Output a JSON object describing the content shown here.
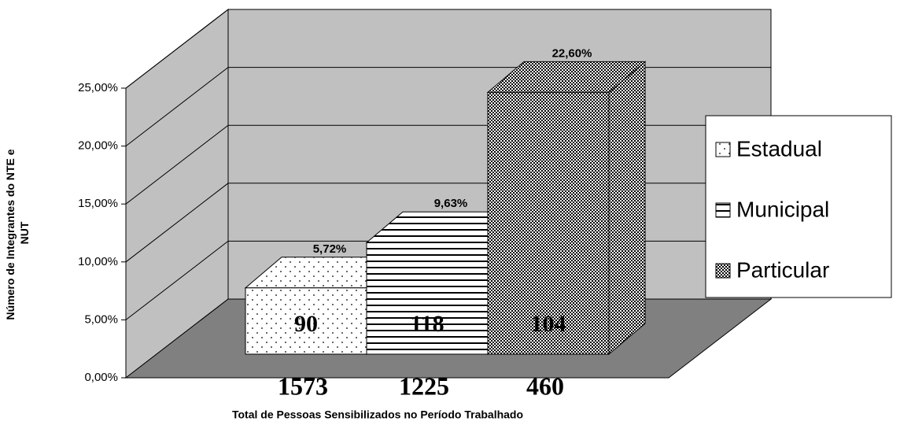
{
  "chart_data": {
    "type": "bar3d",
    "y_label": [
      "Número de Integrantes do NTE e",
      "NUT"
    ],
    "x_label": "Total de Pessoas Sensibilizados no Período Trabalhado",
    "categories": [
      "1573",
      "1225",
      "460"
    ],
    "values": [
      5.72,
      9.63,
      22.6
    ],
    "value_labels": [
      "5,72%",
      "9,63%",
      "22,60%"
    ],
    "bar_labels": [
      "90",
      "118",
      "104"
    ],
    "legend": [
      "Estadual",
      "Municipal",
      "Particular"
    ],
    "ylim": [
      0,
      25
    ],
    "yticks": [
      {
        "value": 0,
        "label": "0,00%"
      },
      {
        "value": 5,
        "label": "5,00%"
      },
      {
        "value": 10,
        "label": "10,00%"
      },
      {
        "value": 15,
        "label": "15,00%"
      },
      {
        "value": 20,
        "label": "20,00%"
      },
      {
        "value": 25,
        "label": "25,00%"
      }
    ],
    "grid": true
  }
}
